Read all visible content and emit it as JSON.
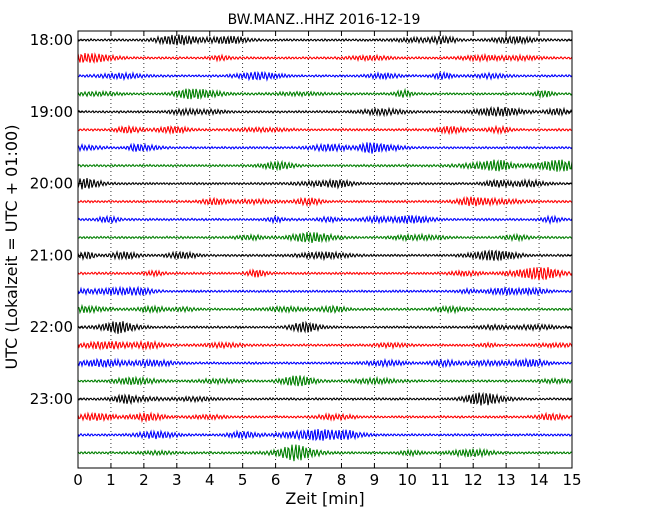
{
  "chart_data": {
    "type": "line",
    "title": "BW.MANZ..HHZ 2016-12-19",
    "xlabel": "Zeit  [min]",
    "ylabel": "UTC (Lokalzeit = UTC + 01:00)",
    "xlim": [
      0,
      15
    ],
    "xticks": [
      "0",
      "1",
      "2",
      "3",
      "4",
      "5",
      "6",
      "7",
      "8",
      "9",
      "10",
      "11",
      "12",
      "13",
      "14",
      "15"
    ],
    "yticks": [
      "18:00",
      "19:00",
      "20:00",
      "21:00",
      "22:00",
      "23:00"
    ],
    "trace_start_times": [
      "18:00",
      "18:15",
      "18:30",
      "18:45",
      "19:00",
      "19:15",
      "19:30",
      "19:45",
      "20:00",
      "20:15",
      "20:30",
      "20:45",
      "21:00",
      "21:15",
      "21:30",
      "21:45",
      "22:00",
      "22:15",
      "22:30",
      "22:45",
      "23:00",
      "23:15",
      "23:30",
      "23:45"
    ],
    "trace_colors": [
      "#000000",
      "#ff0000",
      "#0000ff",
      "#007f00"
    ],
    "grid": "vertical dotted at each minute",
    "legend": "none"
  }
}
